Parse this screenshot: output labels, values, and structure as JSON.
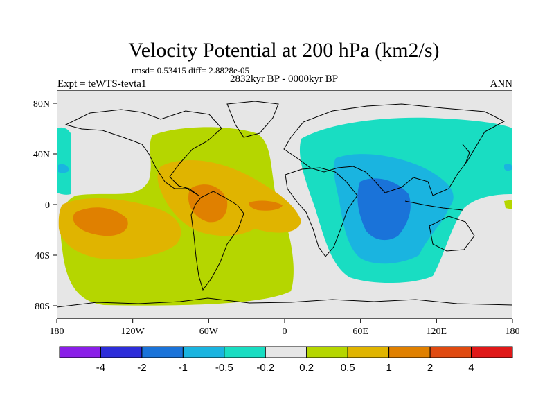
{
  "chart_data": {
    "type": "filled-contour-map",
    "title": "Velocity Potential at 200 hPa (km2/s)",
    "stats_line": "rmsd= 0.53415 diff= 2.8828e-05",
    "subtitle_center": "2832kyr BP - 0000kyr BP",
    "subtitle_left": "Expt = teWTS-tevta1",
    "subtitle_right": "ANN",
    "y_ticks": [
      "80N",
      "40N",
      "0",
      "40S",
      "80S"
    ],
    "x_ticks": [
      "180",
      "120W",
      "60W",
      "0",
      "60E",
      "120E",
      "180"
    ],
    "colorbar": {
      "labels": [
        "-4",
        "-2",
        "-1",
        "-0.5",
        "-0.2",
        "0.2",
        "0.5",
        "1",
        "2",
        "4"
      ],
      "colors": [
        "#8a1ee8",
        "#2d2dd9",
        "#1a73d9",
        "#1ab4e0",
        "#19ddc2",
        "#e6e6e6",
        "#b5d600",
        "#e0b400",
        "#e08000",
        "#e04a10",
        "#e01818"
      ]
    },
    "regions": [
      {
        "name": "zero-band",
        "level": "-0.2 to 0.2"
      },
      {
        "name": "positive-americas-pacific",
        "level": "0.2 to 0.5"
      },
      {
        "name": "positive-core",
        "level": "0.5 to 1"
      },
      {
        "name": "positive-max",
        "level": "1 to 2"
      },
      {
        "name": "negative-asia-indian",
        "level": "-0.5 to -0.2"
      },
      {
        "name": "negative-core",
        "level": "-1 to -0.5"
      },
      {
        "name": "negative-min",
        "level": "-2 to -1"
      }
    ]
  }
}
